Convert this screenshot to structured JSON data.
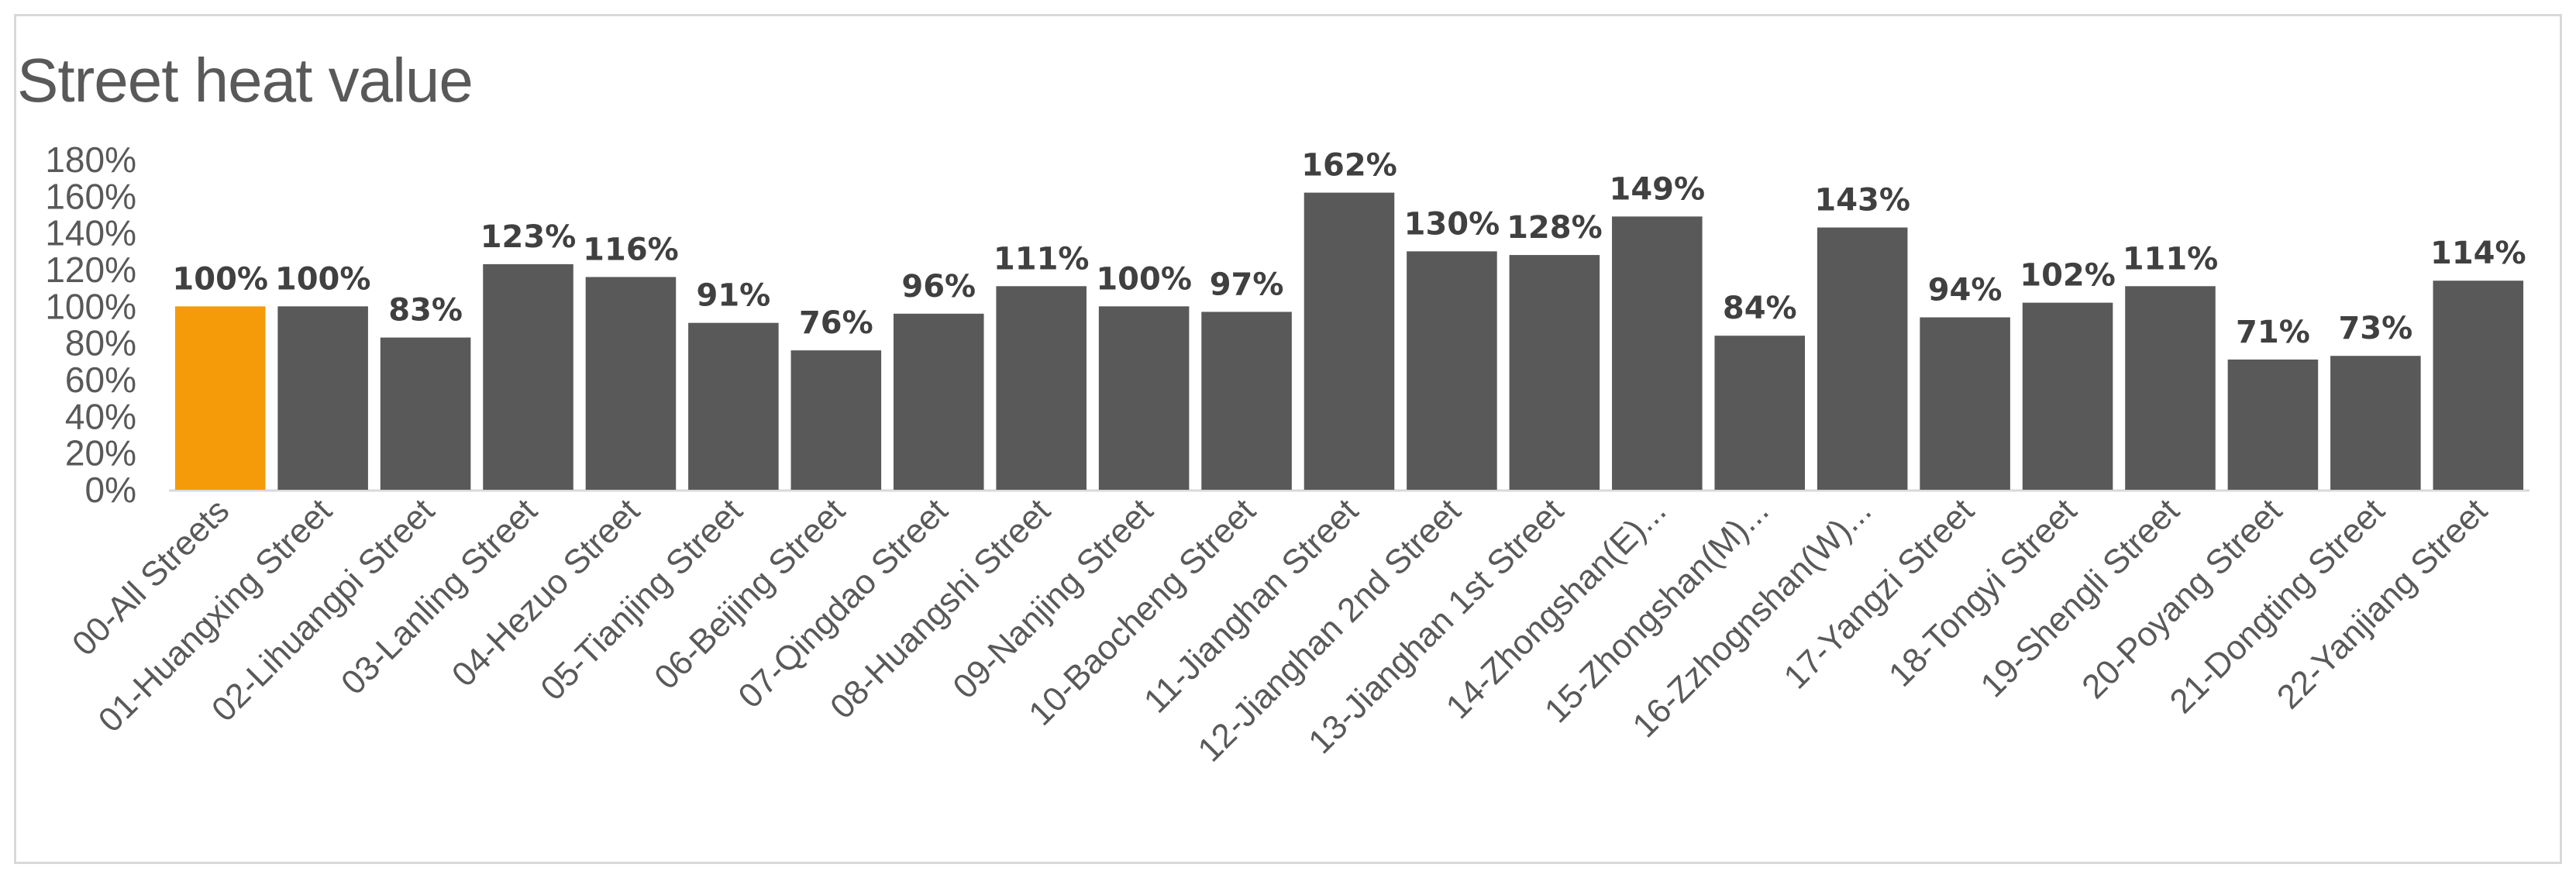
{
  "chart_data": {
    "type": "bar",
    "title": "Street heat value",
    "xlabel": "",
    "ylabel": "",
    "ylim": [
      0,
      180
    ],
    "yticks": [
      0,
      20,
      40,
      60,
      80,
      100,
      120,
      140,
      160,
      180
    ],
    "ytick_labels": [
      "0%",
      "20%",
      "40%",
      "60%",
      "80%",
      "100%",
      "120%",
      "140%",
      "160%",
      "180%"
    ],
    "grid": false,
    "legend": "none",
    "categories": [
      "00-All Streets",
      "01-Huangxing Street",
      "02-Lihuangpi Street",
      "03-Lanling Street",
      "04-Hezuo Street",
      "05-Tianjing Street",
      "06-Beijing Street",
      "07-Qingdao Street",
      "08-Huangshi Street",
      "09-Nanjing Street",
      "10-Baocheng Street",
      "11-Jianghan Street",
      "12-Jianghan 2nd Street",
      "13-Jianghan 1st Street",
      "14-Zhongshan(E)...",
      "15-Zhongshan(M)...",
      "16-Zzhognshan(W)...",
      "17-Yangzi Street",
      "18-Tongyi Street",
      "19-Shengli Street",
      "20-Poyang Street",
      "21-Dongting Street",
      "22-Yanjiang Street"
    ],
    "values": [
      100,
      100,
      83,
      123,
      116,
      91,
      76,
      96,
      111,
      100,
      97,
      162,
      130,
      128,
      149,
      84,
      143,
      94,
      102,
      111,
      71,
      73,
      114
    ],
    "data_labels": [
      "100%",
      "100%",
      "83%",
      "123%",
      "116%",
      "91%",
      "76%",
      "96%",
      "111%",
      "100%",
      "97%",
      "162%",
      "130%",
      "128%",
      "149%",
      "84%",
      "143%",
      "94%",
      "102%",
      "111%",
      "71%",
      "73%",
      "114%"
    ],
    "colors": {
      "highlight": "#f59b0a",
      "bar": "#595959"
    },
    "highlight_index": 0
  }
}
